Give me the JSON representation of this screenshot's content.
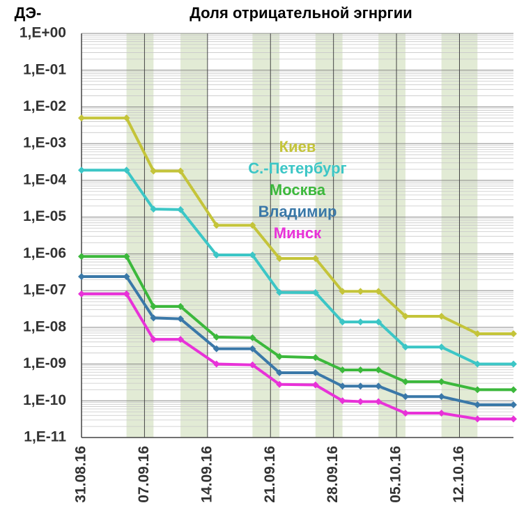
{
  "chart_data": {
    "type": "line",
    "title": "Доля отрицательной эгнргии",
    "y_label": "ДЭ-",
    "log_scale_y": true,
    "grid": true,
    "legend_position": "center",
    "x": [
      "2016-08-31",
      "2016-09-05",
      "2016-09-08",
      "2016-09-11",
      "2016-09-15",
      "2016-09-19",
      "2016-09-22",
      "2016-09-26",
      "2016-09-29",
      "2016-10-01",
      "2016-10-03",
      "2016-10-06",
      "2016-10-10",
      "2016-10-14",
      "2016-10-18"
    ],
    "xlim": [
      "2016-08-31",
      "2016-10-18"
    ],
    "xticks": [
      {
        "value": "2016-08-31",
        "label": "31.08.16"
      },
      {
        "value": "2016-09-07",
        "label": "07.09.16"
      },
      {
        "value": "2016-09-14",
        "label": "14.09.16"
      },
      {
        "value": "2016-09-21",
        "label": "21.09.16"
      },
      {
        "value": "2016-09-28",
        "label": "28.09.16"
      },
      {
        "value": "2016-10-05",
        "label": "05.10.16"
      },
      {
        "value": "2016-10-12",
        "label": "12.10.16"
      }
    ],
    "ylim": [
      1e-11,
      1
    ],
    "yticks": [
      {
        "value": 1,
        "label": "1,E+00"
      },
      {
        "value": 0.1,
        "label": "1,E-01"
      },
      {
        "value": 0.01,
        "label": "1,E-02"
      },
      {
        "value": 0.001,
        "label": "1,E-03"
      },
      {
        "value": 0.0001,
        "label": "1,E-04"
      },
      {
        "value": 1e-05,
        "label": "1,E-05"
      },
      {
        "value": 1e-06,
        "label": "1,E-06"
      },
      {
        "value": 1e-07,
        "label": "1,E-07"
      },
      {
        "value": 1e-08,
        "label": "1,E-08"
      },
      {
        "value": 1e-09,
        "label": "1,E-09"
      },
      {
        "value": 1e-10,
        "label": "1,E-10"
      },
      {
        "value": 1e-11,
        "label": "1,E-11"
      }
    ],
    "shaded_ranges": [
      [
        "2016-09-05",
        "2016-09-08"
      ],
      [
        "2016-09-11",
        "2016-09-14"
      ],
      [
        "2016-09-19",
        "2016-09-22"
      ],
      [
        "2016-09-26",
        "2016-09-29"
      ],
      [
        "2016-10-03",
        "2016-10-06"
      ],
      [
        "2016-10-10",
        "2016-10-14"
      ]
    ],
    "shade_color": "#e2ebd5",
    "series": [
      {
        "name": "Киев",
        "color": "#c4c43a",
        "values": [
          0.005,
          0.005,
          0.00018,
          0.00018,
          6e-06,
          6e-06,
          7.5e-07,
          7.5e-07,
          9.5e-08,
          9.5e-08,
          9.5e-08,
          2e-08,
          2e-08,
          6.7e-09,
          6.7e-09
        ]
      },
      {
        "name": "С.-Петербург",
        "color": "#3cc6c6",
        "values": [
          0.00019,
          0.00019,
          1.65e-05,
          1.6e-05,
          9.3e-07,
          9.3e-07,
          8.9e-08,
          8.8e-08,
          1.4e-08,
          1.4e-08,
          1.4e-08,
          2.9e-09,
          2.9e-09,
          1e-09,
          1e-09
        ]
      },
      {
        "name": "Москва",
        "color": "#3cb83c",
        "values": [
          8.5e-07,
          8.5e-07,
          3.7e-08,
          3.7e-08,
          5.4e-09,
          5.2e-09,
          1.6e-09,
          1.5e-09,
          6.9e-10,
          6.9e-10,
          6.9e-10,
          3.3e-10,
          3.3e-10,
          2e-10,
          2e-10
        ]
      },
      {
        "name": "Владимир",
        "color": "#3a78a8",
        "values": [
          2.4e-07,
          2.4e-07,
          1.8e-08,
          1.7e-08,
          2.6e-09,
          2.6e-09,
          5.8e-10,
          5.8e-10,
          2.5e-10,
          2.5e-10,
          2.5e-10,
          1.3e-10,
          1.3e-10,
          7.8e-11,
          7.8e-11
        ]
      },
      {
        "name": "Минск",
        "color": "#e832d8",
        "values": [
          8.1e-08,
          8.1e-08,
          4.7e-09,
          4.7e-09,
          1e-09,
          9.5e-10,
          2.8e-10,
          2.7e-10,
          1e-10,
          9.5e-11,
          9.5e-11,
          4.6e-11,
          4.6e-11,
          3.2e-11,
          3.2e-11
        ]
      }
    ]
  }
}
